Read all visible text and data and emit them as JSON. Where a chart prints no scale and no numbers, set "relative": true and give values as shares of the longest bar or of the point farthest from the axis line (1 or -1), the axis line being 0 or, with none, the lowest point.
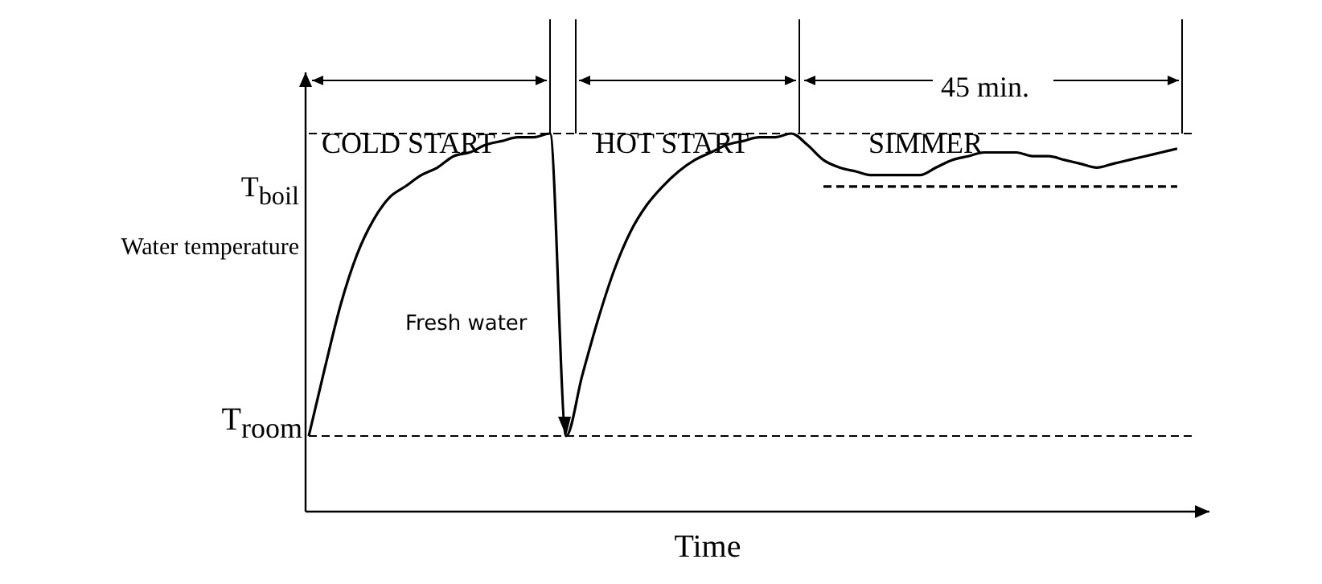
{
  "chart_data": {
    "type": "line",
    "relative": true,
    "xlabel": "Time",
    "ylabel": "Water temperature",
    "marker": "none",
    "line_style": "solid",
    "categories": [
      null,
      null,
      null,
      null,
      null,
      null,
      null,
      null,
      null,
      null,
      null,
      null,
      null,
      null,
      null,
      null,
      null,
      null,
      null,
      null,
      null,
      null,
      null,
      null,
      null,
      null,
      null,
      null,
      null,
      null,
      null,
      null,
      null,
      null,
      null,
      null,
      null,
      null,
      null,
      null,
      null,
      null,
      null,
      null,
      null,
      null,
      null,
      null,
      null,
      null,
      null,
      null,
      null,
      null,
      null
    ],
    "series": [
      {
        "color": "#000000",
        "values": [
          0.2,
          0.38,
          0.55,
          0.68,
          0.77,
          0.83,
          0.86,
          0.89,
          0.91,
          0.94,
          0.95,
          0.97,
          0.98,
          0.99,
          0.99,
          1,
          0.2,
          0.36,
          0.51,
          0.64,
          0.74,
          0.81,
          0.86,
          0.9,
          0.93,
          0.95,
          0.97,
          0.98,
          0.99,
          0.99,
          1,
          0.97,
          0.93,
          0.91,
          0.9,
          0.89,
          0.89,
          0.89,
          0.89,
          0.91,
          0.93,
          0.94,
          0.95,
          0.95,
          0.95,
          0.94,
          0.94,
          0.93,
          0.92,
          0.91,
          0.92,
          0.93,
          0.94,
          0.95,
          0.96
        ]
      },
      {
        "color": "#000000",
        "line_style": "dashed",
        "values": [
          null,
          null,
          null,
          null,
          null,
          null,
          null,
          null,
          null,
          null,
          null,
          null,
          null,
          null,
          null,
          null,
          null,
          null,
          null,
          null,
          null,
          null,
          null,
          null,
          null,
          null,
          null,
          null,
          null,
          null,
          null,
          null,
          0.86,
          0.86,
          0.86,
          0.86,
          0.86,
          0.86,
          0.86,
          0.86,
          0.86,
          0.86,
          0.86,
          0.86,
          0.86,
          0.86,
          0.86,
          0.86,
          0.86,
          0.86,
          0.86,
          0.86,
          0.86,
          0.86,
          0.86
        ]
      }
    ],
    "ref_lines": [
      {
        "axis": "y",
        "value": 1,
        "line_style": "dashed",
        "color": "#000000"
      },
      {
        "axis": "y",
        "value": 0.2,
        "label": "T$_{room}$",
        "line_style": "dashed",
        "color": "#000000"
      }
    ],
    "annotations": [
      "COLD START",
      "HOT START",
      "SIMMER",
      "45 min.",
      "Fresh water",
      "T$_{boil}$"
    ]
  }
}
